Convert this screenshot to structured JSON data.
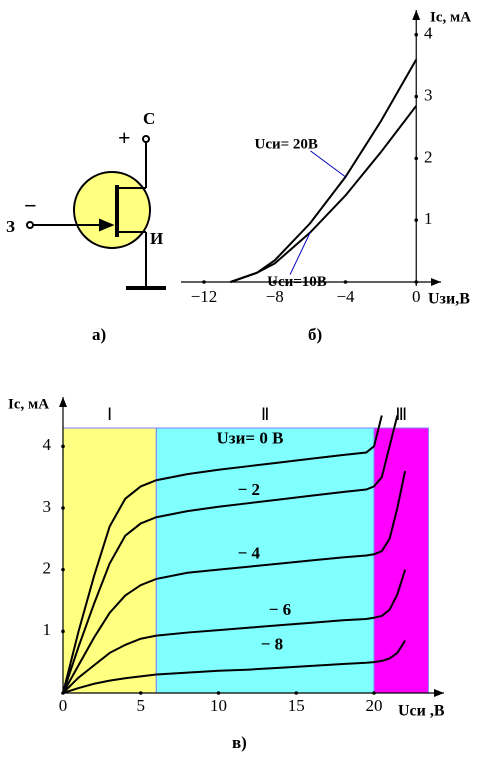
{
  "circuit": {
    "drain": "С",
    "plus": "+",
    "gate": "З",
    "minus": "−",
    "source": "И"
  },
  "captions": [
    "а)",
    "б)",
    "в)"
  ],
  "chart_data": [
    {
      "type": "line",
      "x_label": "Uзи,В",
      "y_label": "Iс, мА",
      "x": [
        -10.5,
        -9,
        -8,
        -6,
        -4,
        -2,
        0
      ],
      "series": [
        {
          "name": "Uси= 20В",
          "color": "#000000",
          "values": [
            0,
            0.15,
            0.35,
            0.95,
            1.7,
            2.6,
            3.6
          ]
        },
        {
          "name": "Uси=10В",
          "color": "#000000",
          "values": [
            0,
            0.15,
            0.3,
            0.8,
            1.4,
            2.1,
            2.85
          ]
        }
      ],
      "xlim": [
        -13.3,
        1.4
      ],
      "ylim": [
        0,
        4.4
      ],
      "xticks": [
        {
          "value": -12,
          "label": "−12"
        },
        {
          "value": -8,
          "label": "−8"
        },
        {
          "value": -4,
          "label": "−4"
        },
        0
      ],
      "yticks": [
        1,
        2,
        3,
        4
      ]
    },
    {
      "type": "line",
      "x_label": "Uси ,В",
      "y_label": "Iс, мА",
      "regions": [
        {
          "label": "Ⅰ",
          "from": 0,
          "to": 6,
          "color": "#ffff80"
        },
        {
          "label": "Ⅱ",
          "from": 6,
          "to": 20,
          "color": "#80ffff"
        },
        {
          "label": "Ⅲ",
          "from": 20,
          "to": 23.5,
          "color": "#ff00ff"
        }
      ],
      "x": [
        0,
        1,
        2,
        3,
        4,
        5,
        6,
        8,
        10,
        12,
        14,
        16,
        18,
        19.5,
        20,
        20.5,
        21,
        21.5,
        22
      ],
      "series": [
        {
          "name": "Uзи= 0 В",
          "color": "#000000",
          "values": [
            0,
            1.0,
            1.9,
            2.7,
            3.15,
            3.35,
            3.45,
            3.55,
            3.62,
            3.68,
            3.74,
            3.8,
            3.86,
            3.9,
            4.0,
            4.5,
            null,
            null,
            null
          ]
        },
        {
          "name": "− 2",
          "color": "#000000",
          "values": [
            0,
            0.75,
            1.45,
            2.1,
            2.55,
            2.75,
            2.85,
            2.95,
            3.02,
            3.08,
            3.14,
            3.2,
            3.26,
            3.3,
            3.35,
            3.5,
            4.0,
            4.5,
            null
          ]
        },
        {
          "name": "− 4",
          "color": "#000000",
          "values": [
            0,
            0.45,
            0.9,
            1.3,
            1.58,
            1.75,
            1.85,
            1.95,
            2.0,
            2.05,
            2.1,
            2.15,
            2.2,
            2.23,
            2.25,
            2.3,
            2.5,
            3.0,
            3.6
          ]
        },
        {
          "name": "− 6",
          "color": "#000000",
          "values": [
            0,
            0.25,
            0.45,
            0.65,
            0.78,
            0.88,
            0.93,
            0.98,
            1.02,
            1.06,
            1.1,
            1.14,
            1.18,
            1.2,
            1.22,
            1.25,
            1.35,
            1.6,
            2.0
          ]
        },
        {
          "name": "− 8",
          "color": "#000000",
          "values": [
            0,
            0.08,
            0.15,
            0.2,
            0.24,
            0.27,
            0.3,
            0.33,
            0.36,
            0.38,
            0.41,
            0.44,
            0.47,
            0.49,
            0.5,
            0.52,
            0.56,
            0.65,
            0.85
          ]
        }
      ],
      "xlim": [
        0,
        24.5
      ],
      "ylim": [
        0,
        4.8
      ],
      "xticks": [
        0,
        5,
        10,
        15,
        20
      ],
      "yticks": [
        1,
        2,
        3,
        4
      ]
    }
  ]
}
